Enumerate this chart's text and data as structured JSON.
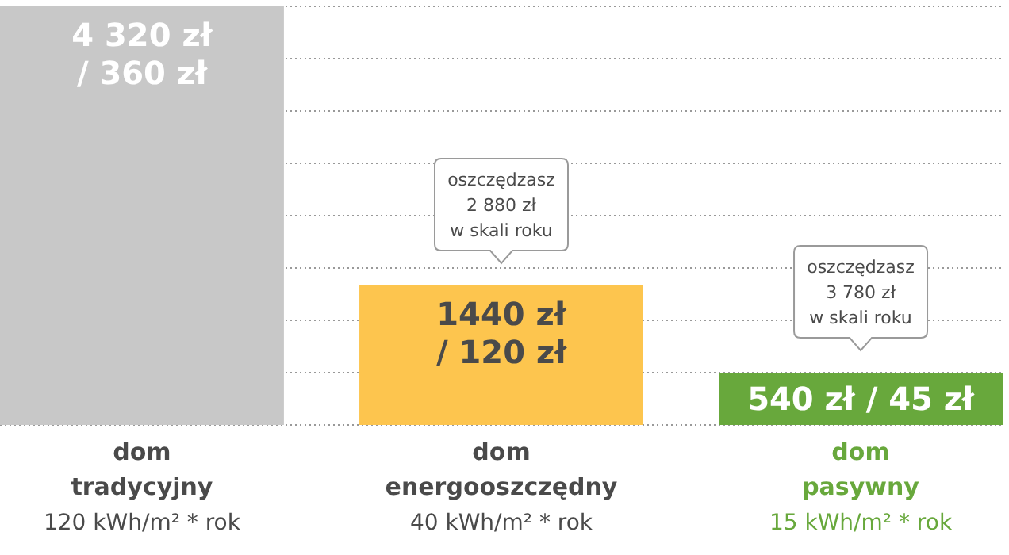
{
  "chart_data": {
    "type": "bar",
    "categories": [
      "dom tradycyjny",
      "dom energooszczędny",
      "dom pasywny"
    ],
    "values": [
      4320,
      1440,
      540
    ],
    "colors": [
      "#c8c8c8",
      "#fdc54e",
      "#68a83c"
    ],
    "value_labels": [
      "4 320 zł / 360 zł",
      "1440 zł / 120 zł",
      "540 zł / 45 zł"
    ],
    "ylim": [
      0,
      4320
    ],
    "yticks": [
      {
        "value": 0,
        "label": null
      },
      {
        "value": 540,
        "label": null
      },
      {
        "value": 1080,
        "label": null
      },
      {
        "value": 1620,
        "label": null
      },
      {
        "value": 2160,
        "label": null
      },
      {
        "value": 2700,
        "label": null
      },
      {
        "value": 3240,
        "label": null
      },
      {
        "value": 3780,
        "label": null
      },
      {
        "value": 4320,
        "label": null
      }
    ],
    "grid": "y",
    "annotations": [
      "120 kWh/m² * rok",
      "40 kWh/m² * rok",
      "15 kWh/m² * rok",
      {
        "text": "oszczędzasz\n2 880 zł\nw skali roku",
        "x": "dom energooszczędny",
        "y": 1440
      },
      {
        "text": "oszczędzasz\n3 780 zł\nw skali roku",
        "x": "dom pasywny",
        "y": 540
      }
    ]
  }
}
